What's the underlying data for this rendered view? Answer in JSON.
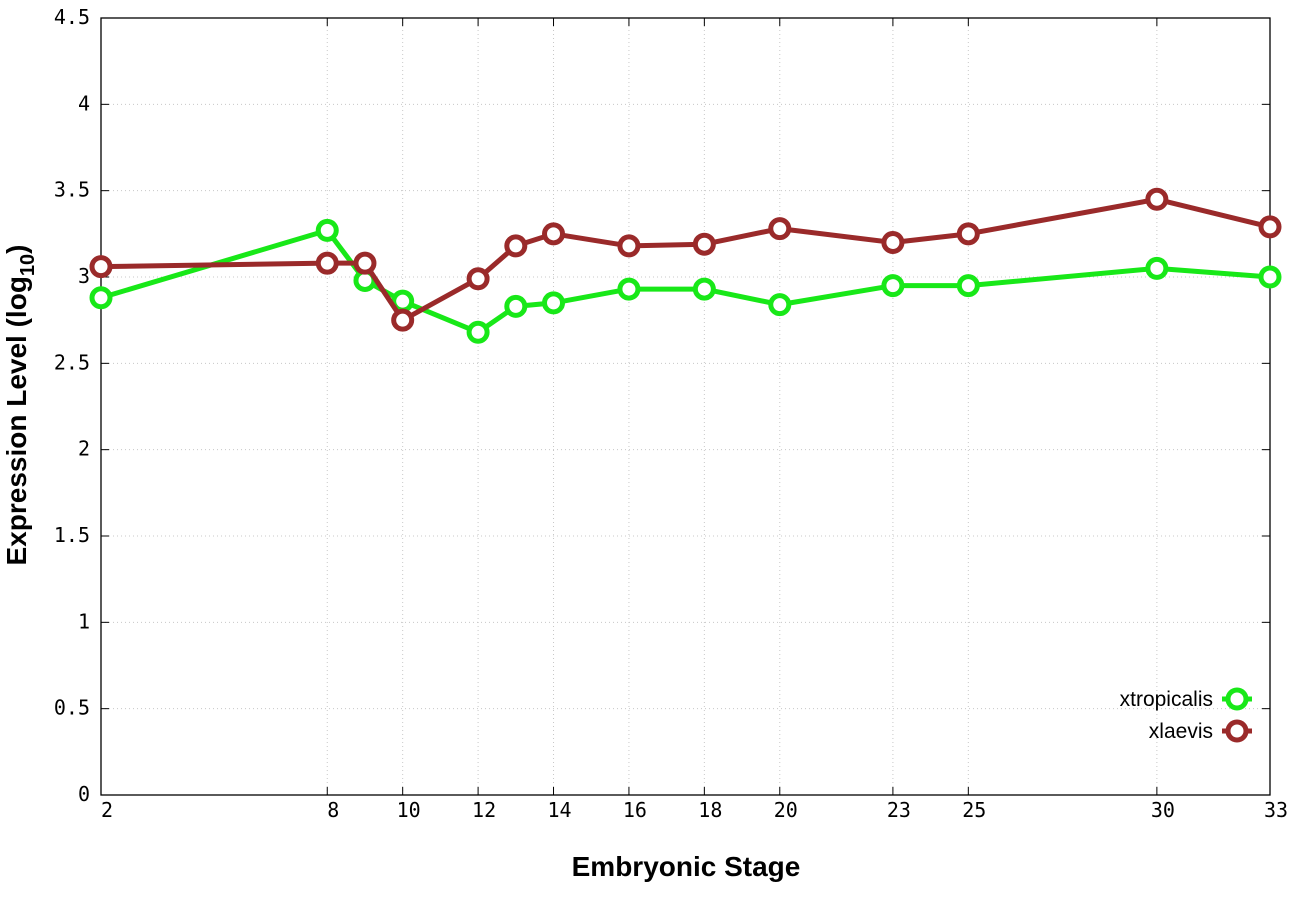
{
  "chart_data": {
    "type": "line",
    "xlabel": "Embryonic Stage",
    "ylabel_main": "Expression Level (log",
    "ylabel_sub": "10",
    "ylabel_close": ")",
    "xlim": [
      2,
      33
    ],
    "ylim": [
      0,
      4.5
    ],
    "x_ticks": [
      2,
      8,
      10,
      12,
      14,
      16,
      18,
      20,
      23,
      25,
      30,
      33
    ],
    "y_ticks": [
      0,
      0.5,
      1,
      1.5,
      2,
      2.5,
      3,
      3.5,
      4,
      4.5
    ],
    "y_tick_labels": [
      "0",
      "0.5",
      "1",
      "1.5",
      "2",
      "2.5",
      "3",
      "3.5",
      "4",
      "4.5"
    ],
    "grid": true,
    "legend_position": "bottom-right",
    "x": [
      2,
      8,
      9,
      10,
      12,
      13,
      14,
      16,
      18,
      20,
      23,
      25,
      30,
      33
    ],
    "series": [
      {
        "name": "xtropicalis",
        "color": "#18e818",
        "values": [
          2.88,
          3.27,
          2.98,
          2.86,
          2.68,
          2.83,
          2.85,
          2.93,
          2.93,
          2.84,
          2.95,
          2.95,
          3.05,
          3.0
        ]
      },
      {
        "name": "xlaevis",
        "color": "#9a2a2a",
        "values": [
          3.06,
          3.08,
          3.08,
          2.75,
          2.99,
          3.18,
          3.25,
          3.18,
          3.19,
          3.28,
          3.2,
          3.25,
          3.45,
          3.29
        ]
      }
    ]
  }
}
